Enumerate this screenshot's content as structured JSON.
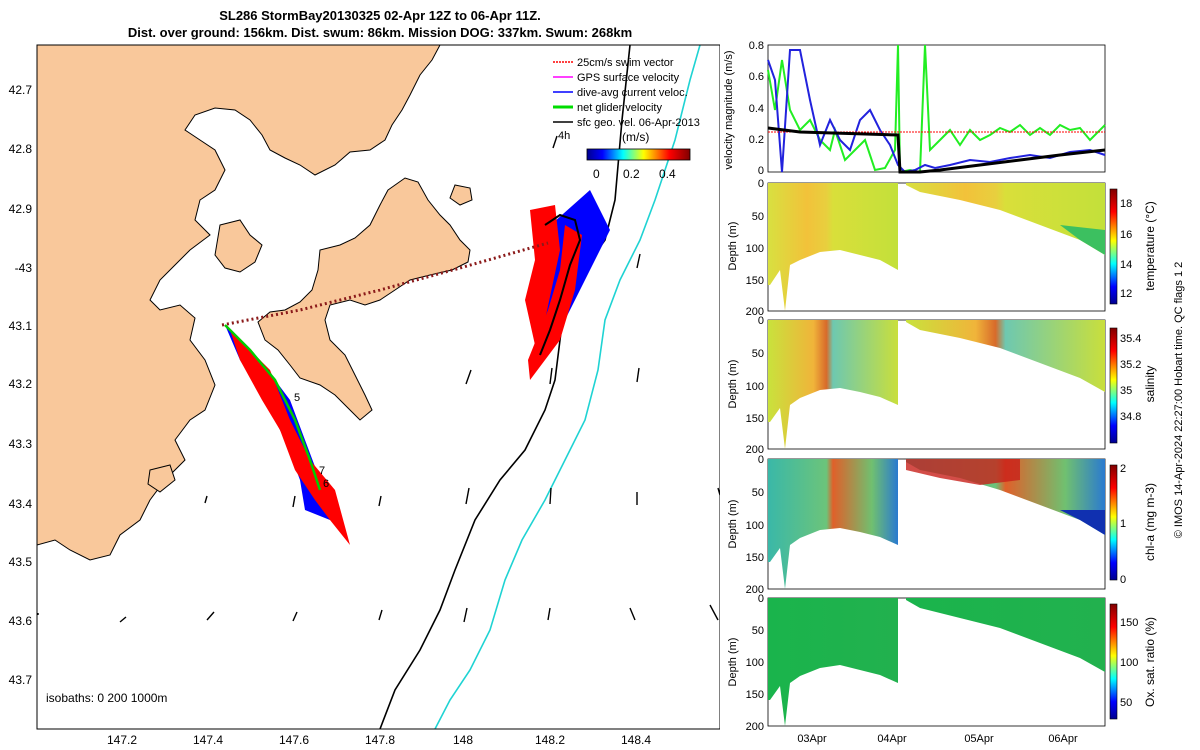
{
  "title": {
    "line1": "SL286 StormBay20130325 02-Apr 12Z to 06-Apr 11Z.",
    "line2": "Dist. over ground: 156km. Dist. swum: 86km. Mission DOG: 337km. Swum: 268km"
  },
  "map": {
    "lon_ticks": [
      "147.2",
      "147.4",
      "147.6",
      "147.8",
      "148",
      "148.2",
      "148.4"
    ],
    "lat_ticks": [
      "42.7",
      "42.8",
      "42.9",
      "-43",
      "43.1",
      "43.2",
      "43.3",
      "43.4",
      "43.5",
      "43.6",
      "43.7"
    ],
    "legend": [
      {
        "label": "25cm/s swim vector",
        "color": "#ff0000"
      },
      {
        "label": "GPS surface velocity",
        "color": "#ff00ff"
      },
      {
        "label": "dive-avg current veloc.",
        "color": "#0000ff"
      },
      {
        "label": "net glider velocity",
        "color": "#00dd00"
      },
      {
        "label": "sfc geo. vel. 06-Apr-2013",
        "color": "#000000"
      }
    ],
    "legend_extra": "4h",
    "colorbar_label": "(m/s)",
    "colorbar_ticks": [
      "0",
      "0.2",
      "0.4"
    ],
    "isobaths_text": "isobaths: 0   200  1000m",
    "track_labels": [
      "5",
      "7",
      "6"
    ],
    "land_color": "#f9c89b"
  },
  "panels": {
    "x_ticks": [
      "03Apr",
      "04Apr",
      "05Apr",
      "06Apr"
    ],
    "velocity": {
      "ylabel": "velocity magnitude (m/s)",
      "yticks": [
        "0",
        "0.2",
        "0.4",
        "0.6",
        "0.8"
      ]
    },
    "temperature": {
      "ylabel": "Depth (m)",
      "clabel": "temperature (°C)",
      "cticks": [
        "12",
        "14",
        "16",
        "18"
      ]
    },
    "salinity": {
      "ylabel": "Depth (m)",
      "clabel": "salinity",
      "cticks": [
        "34.8",
        "35",
        "35.2",
        "35.4"
      ]
    },
    "chla": {
      "ylabel": "Depth (m)",
      "clabel": "chl-a (mg m-3)",
      "cticks": [
        "0",
        "1",
        "2"
      ]
    },
    "oxygen": {
      "ylabel": "Depth (m)",
      "clabel": "Ox. sat. ratio (%)",
      "cticks": [
        "50",
        "100",
        "150"
      ]
    },
    "depth_ticks": [
      "0",
      "50",
      "100",
      "150",
      "200"
    ]
  },
  "side_info": "© IMOS 14-Apr-2024 22:27:00 Hobart time. QC flags 1  2"
}
